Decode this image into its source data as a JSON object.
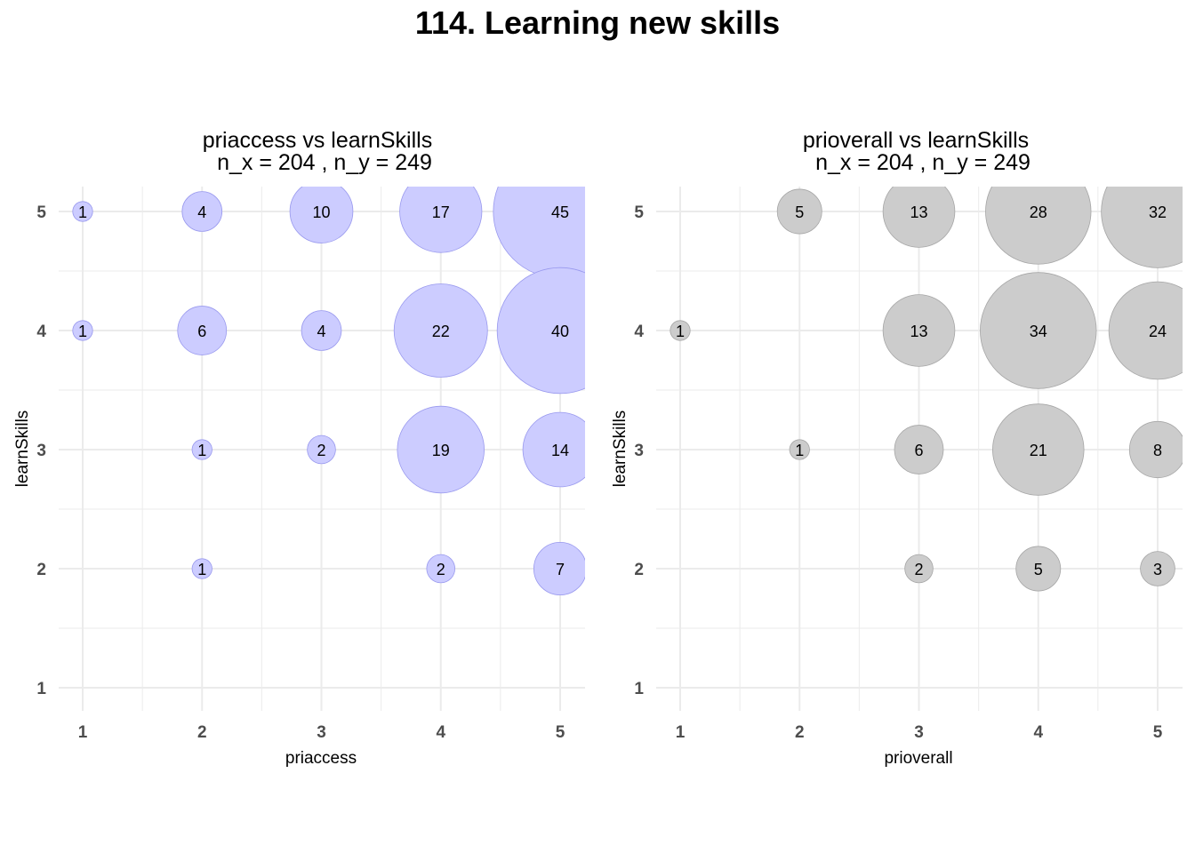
{
  "title": "114. Learning new skills",
  "chart_data": [
    {
      "type": "scatter",
      "title": "priaccess vs learnSkills",
      "subtitle": "n_x = 204 , n_y = 249",
      "xlabel": "priaccess",
      "ylabel": "learnSkills",
      "x_ticks": [
        "1",
        "2",
        "3",
        "4",
        "5"
      ],
      "y_ticks": [
        "1",
        "2",
        "3",
        "4",
        "5"
      ],
      "xlim": [
        1,
        5
      ],
      "ylim": [
        1,
        5
      ],
      "grid": true,
      "point_color": "#ccccff",
      "point_outline": "#9999ee",
      "points": [
        {
          "x": 1,
          "y": 5,
          "n": 1,
          "label": "1"
        },
        {
          "x": 2,
          "y": 5,
          "n": 4,
          "label": "4"
        },
        {
          "x": 3,
          "y": 5,
          "n": 10,
          "label": "10"
        },
        {
          "x": 4,
          "y": 5,
          "n": 17,
          "label": "17"
        },
        {
          "x": 5,
          "y": 5,
          "n": 45,
          "label": "45"
        },
        {
          "x": 1,
          "y": 4,
          "n": 1,
          "label": "1"
        },
        {
          "x": 2,
          "y": 4,
          "n": 6,
          "label": "6"
        },
        {
          "x": 3,
          "y": 4,
          "n": 4,
          "label": "4"
        },
        {
          "x": 4,
          "y": 4,
          "n": 22,
          "label": "22"
        },
        {
          "x": 5,
          "y": 4,
          "n": 40,
          "label": "40"
        },
        {
          "x": 2,
          "y": 3,
          "n": 1,
          "label": "1"
        },
        {
          "x": 3,
          "y": 3,
          "n": 2,
          "label": "2"
        },
        {
          "x": 4,
          "y": 3,
          "n": 19,
          "label": "19"
        },
        {
          "x": 5,
          "y": 3,
          "n": 14,
          "label": "14"
        },
        {
          "x": 2,
          "y": 2,
          "n": 1,
          "label": "1"
        },
        {
          "x": 4,
          "y": 2,
          "n": 2,
          "label": "2"
        },
        {
          "x": 5,
          "y": 2,
          "n": 7,
          "label": "7"
        }
      ]
    },
    {
      "type": "scatter",
      "title": "prioverall vs learnSkills",
      "subtitle": "n_x = 204 , n_y = 249",
      "xlabel": "prioverall",
      "ylabel": "learnSkills",
      "x_ticks": [
        "1",
        "2",
        "3",
        "4",
        "5"
      ],
      "y_ticks": [
        "1",
        "2",
        "3",
        "4",
        "5"
      ],
      "xlim": [
        1,
        5
      ],
      "ylim": [
        1,
        5
      ],
      "grid": true,
      "point_color": "#cccccc",
      "point_outline": "#a6a6a6",
      "points": [
        {
          "x": 2,
          "y": 5,
          "n": 5,
          "label": "5"
        },
        {
          "x": 3,
          "y": 5,
          "n": 13,
          "label": "13"
        },
        {
          "x": 4,
          "y": 5,
          "n": 28,
          "label": "28"
        },
        {
          "x": 5,
          "y": 5,
          "n": 32,
          "label": "32"
        },
        {
          "x": 1,
          "y": 4,
          "n": 1,
          "label": "1"
        },
        {
          "x": 3,
          "y": 4,
          "n": 13,
          "label": "13"
        },
        {
          "x": 4,
          "y": 4,
          "n": 34,
          "label": "34"
        },
        {
          "x": 5,
          "y": 4,
          "n": 24,
          "label": "24"
        },
        {
          "x": 2,
          "y": 3,
          "n": 1,
          "label": "1"
        },
        {
          "x": 3,
          "y": 3,
          "n": 6,
          "label": "6"
        },
        {
          "x": 4,
          "y": 3,
          "n": 21,
          "label": "21"
        },
        {
          "x": 5,
          "y": 3,
          "n": 8,
          "label": "8"
        },
        {
          "x": 3,
          "y": 2,
          "n": 2,
          "label": "2"
        },
        {
          "x": 4,
          "y": 2,
          "n": 5,
          "label": "5"
        },
        {
          "x": 5,
          "y": 2,
          "n": 3,
          "label": "3"
        }
      ]
    }
  ]
}
